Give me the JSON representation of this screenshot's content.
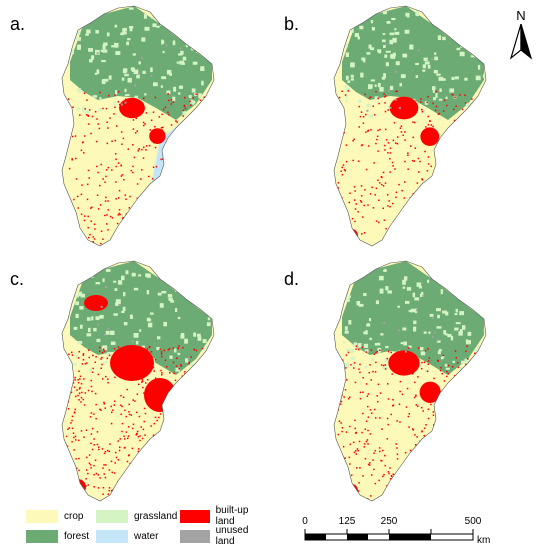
{
  "panels": [
    {
      "id": "a",
      "label": "a.",
      "urban_extent": 0.35
    },
    {
      "id": "b",
      "label": "b.",
      "urban_extent": 0.45
    },
    {
      "id": "c",
      "label": "c.",
      "urban_extent": 1.0
    },
    {
      "id": "d",
      "label": "d.",
      "urban_extent": 0.55
    }
  ],
  "north_arrow": {
    "letter": "N"
  },
  "legend": {
    "items": [
      {
        "label": "crop",
        "color": "#fdf9b9"
      },
      {
        "label": "grassland",
        "color": "#d4f5c3"
      },
      {
        "label": "built-up land",
        "color": "#ff0000"
      },
      {
        "label": "forest",
        "color": "#6cab73"
      },
      {
        "label": "water",
        "color": "#c4e6f8"
      },
      {
        "label": "unused land",
        "color": "#a3a3a3"
      }
    ]
  },
  "scale_bar": {
    "ticks": [
      "0",
      "125",
      "250",
      "500"
    ],
    "unit": "km"
  }
}
